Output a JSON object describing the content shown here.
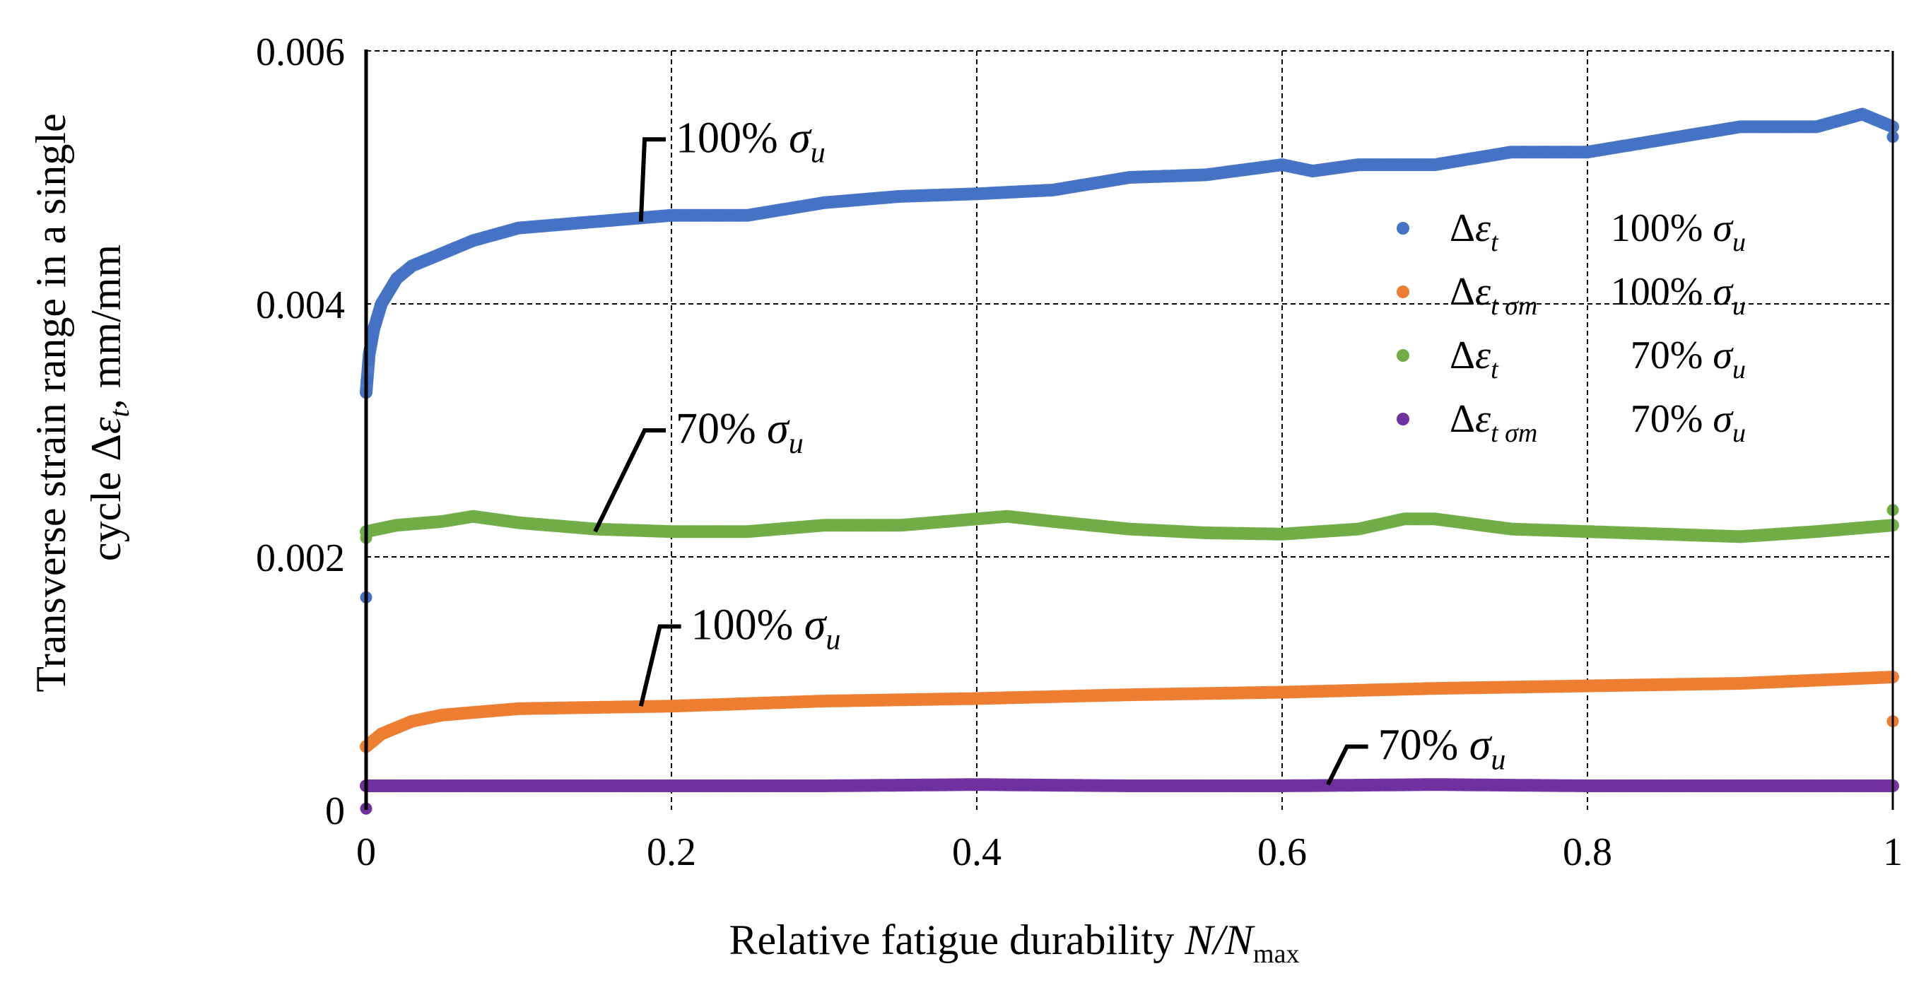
{
  "chart_data": {
    "type": "scatter",
    "xlabel": {
      "text": "Relative fatigue durability ",
      "var": "N/N",
      "sub": "max"
    },
    "ylabel": {
      "line1": "Transverse strain range in a single",
      "line2_prefix": "cycle Δ",
      "line2_var": "ε",
      "line2_sub": "t",
      "line2_suffix": ", mm/mm"
    },
    "xlim": [
      0,
      1
    ],
    "ylim": [
      0,
      0.006
    ],
    "x_ticks": [
      {
        "v": 0,
        "label": "0"
      },
      {
        "v": 0.2,
        "label": "0.2"
      },
      {
        "v": 0.4,
        "label": "0.4"
      },
      {
        "v": 0.6,
        "label": "0.6"
      },
      {
        "v": 0.8,
        "label": "0.8"
      },
      {
        "v": 1,
        "label": "1"
      }
    ],
    "y_ticks": [
      {
        "v": 0,
        "label": "0"
      },
      {
        "v": 0.002,
        "label": "0.002"
      },
      {
        "v": 0.004,
        "label": "0.004"
      },
      {
        "v": 0.006,
        "label": "0.006"
      }
    ],
    "grid": "dashed",
    "legend_position": "right",
    "series": [
      {
        "name": "Δεt 100% σu",
        "color": "#4472C4",
        "x": [
          0,
          0.002,
          0.005,
          0.01,
          0.02,
          0.03,
          0.05,
          0.07,
          0.1,
          0.15,
          0.2,
          0.25,
          0.3,
          0.35,
          0.4,
          0.45,
          0.5,
          0.55,
          0.6,
          0.62,
          0.65,
          0.7,
          0.75,
          0.8,
          0.85,
          0.9,
          0.95,
          0.98,
          1.0
        ],
        "y": [
          0.0033,
          0.0036,
          0.0038,
          0.004,
          0.0042,
          0.0043,
          0.0044,
          0.0045,
          0.0046,
          0.00465,
          0.0047,
          0.0047,
          0.0048,
          0.00485,
          0.00487,
          0.0049,
          0.005,
          0.00502,
          0.0051,
          0.00505,
          0.0051,
          0.0051,
          0.0052,
          0.0052,
          0.0053,
          0.0054,
          0.0054,
          0.0055,
          0.0054
        ]
      },
      {
        "name": "Δεt σm 100% σu",
        "color": "#ED7D31",
        "x": [
          0,
          0.01,
          0.03,
          0.05,
          0.1,
          0.2,
          0.3,
          0.4,
          0.5,
          0.6,
          0.7,
          0.8,
          0.9,
          1.0
        ],
        "y": [
          0.0005,
          0.0006,
          0.0007,
          0.00075,
          0.0008,
          0.00082,
          0.00086,
          0.00088,
          0.00091,
          0.00093,
          0.00096,
          0.00098,
          0.001,
          0.00105
        ]
      },
      {
        "name": "Δεt 70% σu",
        "color": "#70AD47",
        "x": [
          0,
          0.02,
          0.05,
          0.07,
          0.1,
          0.15,
          0.2,
          0.25,
          0.3,
          0.35,
          0.4,
          0.42,
          0.45,
          0.5,
          0.55,
          0.6,
          0.65,
          0.68,
          0.7,
          0.75,
          0.8,
          0.85,
          0.9,
          0.95,
          1.0
        ],
        "y": [
          0.0022,
          0.00225,
          0.00228,
          0.00232,
          0.00227,
          0.00222,
          0.0022,
          0.0022,
          0.00225,
          0.00225,
          0.0023,
          0.00232,
          0.00228,
          0.00222,
          0.00219,
          0.00218,
          0.00222,
          0.0023,
          0.0023,
          0.00222,
          0.0022,
          0.00218,
          0.00216,
          0.0022,
          0.00225
        ]
      },
      {
        "name": "Δεt σm 70% σu",
        "color": "#7030A0",
        "x": [
          0,
          0.1,
          0.2,
          0.3,
          0.4,
          0.5,
          0.6,
          0.7,
          0.8,
          0.9,
          1.0
        ],
        "y": [
          0.00019,
          0.00019,
          0.00019,
          0.00019,
          0.0002,
          0.00019,
          0.00019,
          0.0002,
          0.00019,
          0.00019,
          0.00019
        ]
      }
    ],
    "outliers": [
      {
        "series": 0,
        "x": 1.0,
        "y": 0.00532
      },
      {
        "series": 1,
        "x": 1.0,
        "y": 0.0007
      },
      {
        "series": 2,
        "x": 1.0,
        "y": 0.00237
      },
      {
        "series": 2,
        "x": 0,
        "y": 0.00215
      },
      {
        "series": 0,
        "x": 0.0,
        "y": 0.00168
      },
      {
        "series": 3,
        "x": 0,
        "y": 1e-05
      }
    ],
    "legend": [
      {
        "pre": "Δ",
        "var": "ε",
        "sub": "t",
        "pct": "100% ",
        "sig": "σ",
        "sigsub": "u"
      },
      {
        "pre": "Δ",
        "var": "ε",
        "sub": "t σm",
        "pct": "100% ",
        "sig": "σ",
        "sigsub": "u"
      },
      {
        "pre": "Δ",
        "var": "ε",
        "sub": "t",
        "pct": "70% ",
        "sig": "σ",
        "sigsub": "u"
      },
      {
        "pre": "Δ",
        "var": "ε",
        "sub": "t σm",
        "pct": "70% ",
        "sig": "σ",
        "sigsub": "u"
      }
    ],
    "annotations": [
      {
        "pct": "100% ",
        "sig": "σ",
        "sigsub": "u",
        "series": 0,
        "x": 0.18,
        "y": 0.00465,
        "tx": 0.2,
        "ty": 0.0053
      },
      {
        "pct": "70% ",
        "sig": "σ",
        "sigsub": "u",
        "series": 2,
        "x": 0.15,
        "y": 0.0022,
        "tx": 0.2,
        "ty": 0.003
      },
      {
        "pct": "100% ",
        "sig": "σ",
        "sigsub": "u",
        "series": 1,
        "x": 0.18,
        "y": 0.00082,
        "tx": 0.21,
        "ty": 0.00145
      },
      {
        "pct": "70% ",
        "sig": "σ",
        "sigsub": "u",
        "series": 3,
        "x": 0.63,
        "y": 0.0002,
        "tx": 0.66,
        "ty": 0.0005
      }
    ]
  }
}
